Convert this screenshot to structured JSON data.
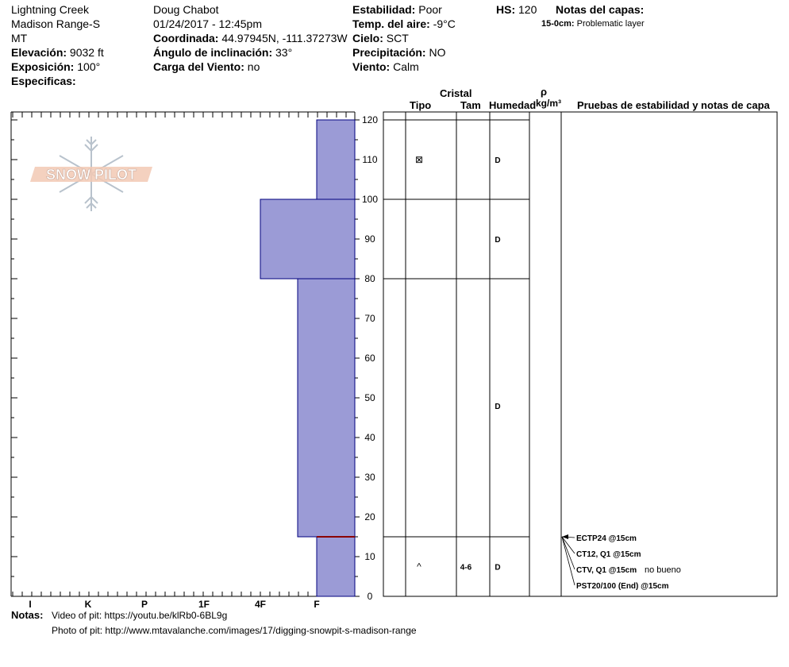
{
  "header": {
    "location": "Lightning Creek",
    "range": "Madison Range-S",
    "state": "MT",
    "elevation_label": "Elevación:",
    "elevation_value": "9032 ft",
    "aspect_label": "Exposición:",
    "aspect_value": "100°",
    "specifics_label": "Especificas:",
    "observer": "Doug Chabot",
    "datetime": "01/24/2017 - 12:45pm",
    "coord_label": "Coordinada:",
    "coord_value": "44.97945N, -111.37273W",
    "slope_label": "Ángulo de inclinación:",
    "slope_value": "33°",
    "windload_label": "Carga del Viento:",
    "windload_value": "no",
    "stability_label": "Estabilidad:",
    "stability_value": "Poor",
    "airtemp_label": "Temp. del aire:",
    "airtemp_value": "-9°C",
    "sky_label": "Cielo:",
    "sky_value": "SCT",
    "precip_label": "Precipitación:",
    "precip_value": "NO",
    "wind_label": "Viento:",
    "wind_value": "Calm",
    "hs_label": "HS:",
    "hs_value": "120",
    "layer_notes_label": "Notas del capas:",
    "layer_note_depth": "15-0cm:",
    "layer_note_text": "Problematic layer"
  },
  "logo_text": "SNOW PILOT",
  "columns": {
    "cristal": "Cristal",
    "tipo": "Tipo",
    "tam": "Tam",
    "humedad": "Humedad",
    "rho": "ρ",
    "density_unit": "kg/m³",
    "tests": "Pruebas de estabilidad y notas de capa"
  },
  "hardness_axis": [
    "I",
    "K",
    "P",
    "1F",
    "4F",
    "F"
  ],
  "depth_axis": [
    "120",
    "110",
    "100",
    "90",
    "80",
    "70",
    "60",
    "50",
    "40",
    "30",
    "20",
    "10",
    "0"
  ],
  "hardness_profile": [
    {
      "top_cm": 120,
      "bottom_cm": 100,
      "hardness": "F"
    },
    {
      "top_cm": 100,
      "bottom_cm": 80,
      "hardness": "4F"
    },
    {
      "top_cm": 80,
      "bottom_cm": 15,
      "hardness": "4F-"
    },
    {
      "top_cm": 15,
      "bottom_cm": 0,
      "hardness": "F"
    }
  ],
  "weak_layer_cm": 15,
  "layers": [
    {
      "grain": "⊠",
      "size": "",
      "wetness": "D"
    },
    {
      "grain": "",
      "size": "",
      "wetness": "D"
    },
    {
      "grain": "",
      "size": "",
      "wetness": "D"
    },
    {
      "grain": "^",
      "size": "4-6",
      "wetness": "D"
    }
  ],
  "tests": [
    {
      "result": "ECTP24 @15cm",
      "note": ""
    },
    {
      "result": "CT12, Q1 @15cm",
      "note": ""
    },
    {
      "result": "CTV, Q1 @15cm",
      "note": "no bueno"
    },
    {
      "result": "PST20/100 (End) @15cm",
      "note": ""
    }
  ],
  "notes": {
    "label": "Notas:",
    "line1": "Video of pit: https://youtu.be/klRb0-6BL9g",
    "line2": "Photo of pit: http://www.mtavalanche.com/images/17/digging-snowpit-s-madison-range"
  },
  "colors": {
    "profile_fill": "#9b9bd6",
    "profile_stroke": "#00007f",
    "weak_layer": "#8b0000"
  }
}
